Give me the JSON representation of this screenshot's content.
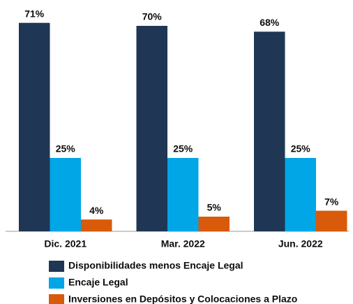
{
  "chart_data": {
    "type": "bar",
    "categories": [
      "Dic. 2021",
      "Mar. 2022",
      "Jun. 2022"
    ],
    "series": [
      {
        "name": "Disponibilidades menos Encaje Legal",
        "color": "#1f3654",
        "values": [
          71,
          70,
          68
        ],
        "value_labels": [
          "71%",
          "70%",
          "68%"
        ]
      },
      {
        "name": "Encaje Legal",
        "color": "#00a6e6",
        "values": [
          25,
          25,
          25
        ],
        "value_labels": [
          "25%",
          "25%",
          "25%"
        ]
      },
      {
        "name": "Inversiones en Depósitos y Colocaciones a Plazo",
        "color": "#d85a0a",
        "values": [
          4,
          5,
          7
        ],
        "value_labels": [
          "4%",
          "5%",
          "7%"
        ]
      }
    ]
  }
}
